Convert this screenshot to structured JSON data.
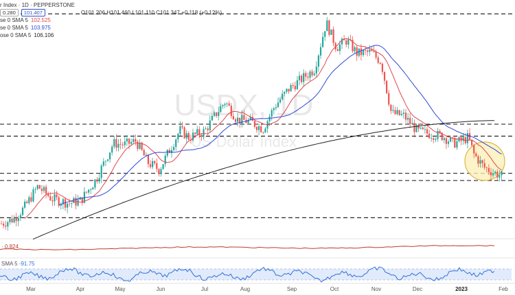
{
  "header": {
    "title": "r Index · 1D · PEPPERSTONE",
    "ohlc": "O101.206 H101.460 L101.110 C101.347 +0.118 (+0.12%)",
    "price_chip": "101.407",
    "spread_chip": "0.280"
  },
  "legend": [
    {
      "label": "se 0 SMA 5",
      "value": "102.525",
      "color": "#e0464f"
    },
    {
      "label": "se 0 SMA 5",
      "value": "103.975",
      "color": "#2f47d6"
    },
    {
      "label": "ose 0 SMA 5",
      "value": "106.106",
      "color": "#222222"
    }
  ],
  "watermark": {
    "symbol": "USDX, 1D",
    "name": "US Dollar Index"
  },
  "volume_pane": {
    "value": "0.824",
    "color": "#c0392b"
  },
  "oscillator_pane": {
    "label": "SMA 5",
    "value": "-91.75",
    "color": "#2f6fd6"
  },
  "x_axis": {
    "labels": [
      "Mar",
      "Apr",
      "May",
      "Jun",
      "Jul",
      "Aug",
      "Sep",
      "Oct",
      "Nov",
      "Dec",
      "2023",
      "Feb"
    ]
  },
  "colors": {
    "up": "#26a69a",
    "down": "#ef5350",
    "sma_fast": "#e0464f",
    "sma_mid": "#2f47d6",
    "sma_slow": "#222222",
    "highlight_fill": "#fbefb6",
    "highlight_stroke": "#d9b84a"
  },
  "chart_data": {
    "type": "candlestick",
    "title": "",
    "x": [
      "Mar",
      "Apr",
      "May",
      "Jun",
      "Jul",
      "Aug",
      "Sep",
      "Oct",
      "Nov",
      "Dec",
      "2023",
      "Feb"
    ],
    "close_path_approx": [
      97.5,
      98.5,
      99.3,
      103.5,
      102.0,
      106.5,
      105.0,
      104.5,
      109.5,
      112.5,
      106.5,
      104.0,
      101.3
    ],
    "dates_approx": [
      "Feb",
      "Mar",
      "Apr",
      "May",
      "Jun",
      "Jul",
      "Aug",
      "Sep",
      "Sep",
      "Oct",
      "Nov",
      "Dec",
      "Jan"
    ],
    "horizontal_levels_approx": [
      114.8,
      105.6,
      104.6,
      101.5,
      100.9,
      97.8
    ],
    "current_close": 101.347,
    "series": [
      {
        "name": "SMA 5",
        "value": 102.525
      },
      {
        "name": "SMA 5",
        "value": 103.975
      },
      {
        "name": "SMA 5",
        "value": 106.106
      }
    ],
    "grid": false,
    "legend": "top-left"
  }
}
